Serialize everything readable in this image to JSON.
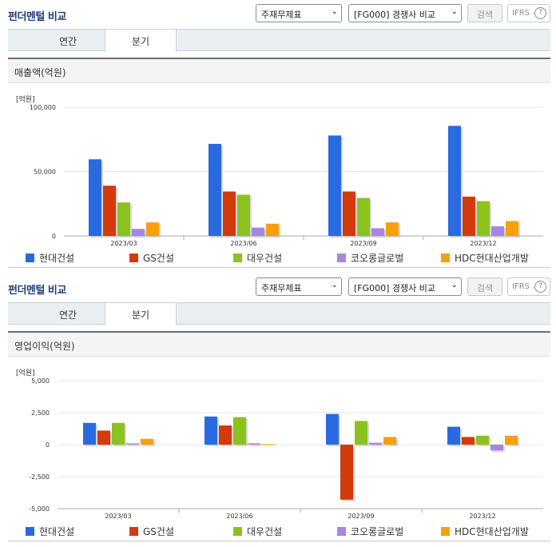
{
  "panels": [
    {
      "header": {
        "title": "펀더멘털 비교",
        "select_type": "주재무제표",
        "select_compare": "[FG000] 경쟁사 비교",
        "search_label": "검색",
        "ifrs_label": "IFRS",
        "help_label": "?"
      },
      "tabs": [
        {
          "label": "연간",
          "active": false
        },
        {
          "label": "분기",
          "active": true
        }
      ],
      "chart_title": "매출액(억원)",
      "unit": "[억원]",
      "chart_data": {
        "type": "bar",
        "categories": [
          "2023/03",
          "2023/06",
          "2023/09",
          "2023/12"
        ],
        "series": [
          {
            "name": "현대건설",
            "color": "#2a6ae0",
            "values": [
              59500,
              71500,
              78000,
              85500
            ]
          },
          {
            "name": "GS건설",
            "color": "#d33a0c",
            "values": [
              39000,
              34500,
              34500,
              30500
            ]
          },
          {
            "name": "대우건설",
            "color": "#8cc21e",
            "values": [
              26000,
              32000,
              29500,
              27000
            ]
          },
          {
            "name": "코오롱글로벌",
            "color": "#a886e0",
            "values": [
              5500,
              6500,
              6000,
              7500
            ]
          },
          {
            "name": "HDC현대산업개발",
            "color": "#f6a00c",
            "values": [
              10500,
              9500,
              10500,
              11500
            ]
          }
        ],
        "ylim": [
          0,
          100000
        ],
        "yticks": [
          0,
          50000,
          100000
        ],
        "ytick_labels": [
          "0",
          "50,000",
          "100,000"
        ],
        "grid": true
      }
    },
    {
      "header": {
        "title": "펀더멘털 비교",
        "select_type": "주재무제표",
        "select_compare": "[FG000] 경쟁사 비교",
        "search_label": "검색",
        "ifrs_label": "IFRS",
        "help_label": "?"
      },
      "tabs": [
        {
          "label": "연간",
          "active": false
        },
        {
          "label": "분기",
          "active": true
        }
      ],
      "chart_title": "영업이익(억원)",
      "unit": "[억원]",
      "chart_data": {
        "type": "bar",
        "categories": [
          "2023/03",
          "2023/06",
          "2023/09",
          "2023/12"
        ],
        "series": [
          {
            "name": "현대건설",
            "color": "#2a6ae0",
            "values": [
              1700,
              2200,
              2400,
              1400
            ]
          },
          {
            "name": "GS건설",
            "color": "#d33a0c",
            "values": [
              1100,
              1500,
              -4300,
              600
            ]
          },
          {
            "name": "대우건설",
            "color": "#8cc21e",
            "values": [
              1700,
              2150,
              1850,
              700
            ]
          },
          {
            "name": "코오롱글로벌",
            "color": "#a886e0",
            "values": [
              100,
              100,
              150,
              -450
            ]
          },
          {
            "name": "HDC현대산업개발",
            "color": "#f6a00c",
            "values": [
              450,
              50,
              600,
              700
            ]
          }
        ],
        "ylim": [
          -5000,
          5000
        ],
        "yticks": [
          -5000,
          -2500,
          0,
          2500,
          5000
        ],
        "ytick_labels": [
          "-5,000",
          "-2,500",
          "0",
          "2,500",
          "5,000"
        ],
        "grid": true
      }
    }
  ]
}
